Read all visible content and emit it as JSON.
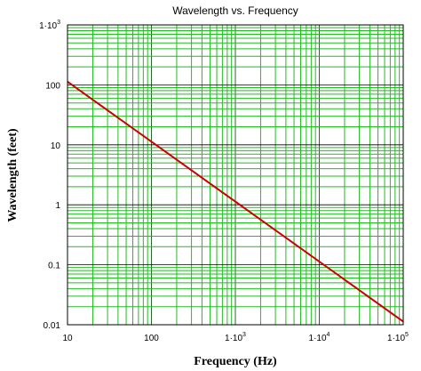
{
  "chart_data": {
    "type": "line",
    "title": "Wavelength vs. Frequency",
    "xlabel": "Frequency (Hz)",
    "ylabel": "Wavelength (feet)",
    "x_scale": "log",
    "y_scale": "log",
    "xlim": [
      10,
      100000
    ],
    "ylim": [
      0.01,
      1000
    ],
    "x_ticks": [
      {
        "value": 10,
        "label": "10"
      },
      {
        "value": 100,
        "label": "100"
      },
      {
        "value": 1000,
        "mantissa": "1·10",
        "exp": "3"
      },
      {
        "value": 10000,
        "mantissa": "1·10",
        "exp": "4"
      },
      {
        "value": 100000,
        "mantissa": "1·10",
        "exp": "5"
      }
    ],
    "y_ticks": [
      {
        "value": 0.01,
        "label": "0.01"
      },
      {
        "value": 0.1,
        "label": "0.1"
      },
      {
        "value": 1,
        "label": "1"
      },
      {
        "value": 10,
        "label": "10"
      },
      {
        "value": 100,
        "label": "100"
      },
      {
        "value": 1000,
        "mantissa": "1·10",
        "exp": "3"
      }
    ],
    "grid": true,
    "series": [
      {
        "color": "#cc0000",
        "x": [
          10,
          100000
        ],
        "y": [
          113,
          0.0113
        ]
      }
    ]
  },
  "colors": {
    "grid_major": "#22bb22",
    "grid_minor": "#22bb22",
    "line": "#cc0000",
    "frame": "#000000"
  }
}
